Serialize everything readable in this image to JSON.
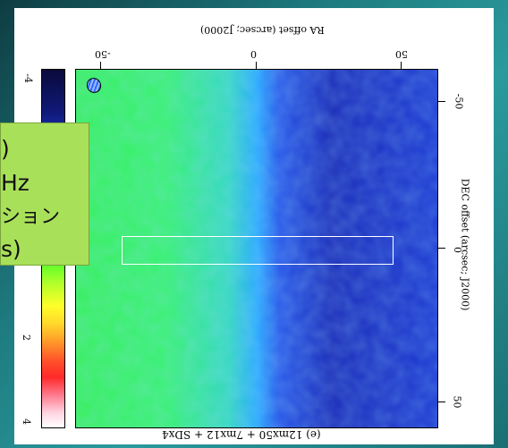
{
  "figure": {
    "top_axis_label": "RA offset (arcsec; J2000)",
    "right_axis_label": "DEC offset (arcsec; J2000)",
    "bottom_caption": "(e) 12mx50 + 7mx12 + SDx4",
    "top_ticks": [
      "-50",
      "0",
      "50"
    ],
    "right_ticks": [
      "-50",
      "0",
      "50"
    ],
    "colorbar_ticks": [
      "-4",
      "2",
      "4"
    ]
  },
  "callout": {
    "lines": [
      ")",
      "Hz",
      "ション",
      "s)"
    ],
    "background": "#a9e05a"
  },
  "colors": {
    "slide_background": "#1f7f84",
    "slit_outline": "#ffffff"
  }
}
